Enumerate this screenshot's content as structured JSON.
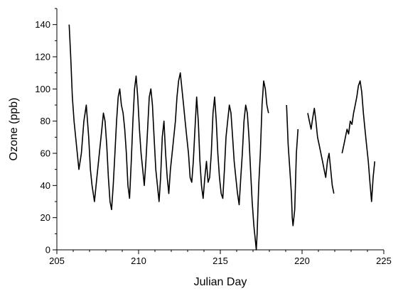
{
  "chart_data": {
    "type": "line",
    "xlabel": "Julian Day",
    "ylabel": "Ozone (ppb)",
    "xlim": [
      205,
      225
    ],
    "ylim": [
      0,
      150
    ],
    "xticks": [
      205,
      210,
      215,
      220,
      225
    ],
    "yticks": [
      0,
      20,
      40,
      60,
      80,
      100,
      120,
      140
    ],
    "grid": false,
    "series": [
      {
        "segments": [
          [
            [
              205.75,
              140
            ],
            [
              205.85,
              120
            ],
            [
              205.95,
              95
            ],
            [
              206.05,
              80
            ],
            [
              206.2,
              65
            ],
            [
              206.35,
              50
            ],
            [
              206.5,
              60
            ],
            [
              206.65,
              80
            ],
            [
              206.8,
              90
            ],
            [
              206.95,
              70
            ],
            [
              207.05,
              50
            ],
            [
              207.15,
              40
            ],
            [
              207.3,
              30
            ],
            [
              207.45,
              45
            ],
            [
              207.6,
              60
            ],
            [
              207.75,
              75
            ],
            [
              207.85,
              85
            ],
            [
              207.95,
              80
            ],
            [
              208.05,
              65
            ],
            [
              208.15,
              45
            ],
            [
              208.25,
              30
            ],
            [
              208.35,
              25
            ],
            [
              208.45,
              40
            ],
            [
              208.55,
              60
            ],
            [
              208.65,
              80
            ],
            [
              208.75,
              95
            ],
            [
              208.85,
              100
            ],
            [
              208.95,
              90
            ],
            [
              209.05,
              85
            ],
            [
              209.15,
              75
            ],
            [
              209.25,
              60
            ],
            [
              209.35,
              40
            ],
            [
              209.45,
              32
            ],
            [
              209.55,
              55
            ],
            [
              209.65,
              80
            ],
            [
              209.75,
              100
            ],
            [
              209.85,
              108
            ],
            [
              209.95,
              95
            ],
            [
              210.05,
              75
            ],
            [
              210.15,
              60
            ],
            [
              210.25,
              50
            ],
            [
              210.35,
              40
            ],
            [
              210.45,
              55
            ],
            [
              210.55,
              75
            ],
            [
              210.65,
              95
            ],
            [
              210.75,
              100
            ],
            [
              210.85,
              90
            ],
            [
              210.95,
              70
            ],
            [
              211.05,
              50
            ],
            [
              211.15,
              40
            ],
            [
              211.25,
              30
            ],
            [
              211.35,
              45
            ],
            [
              211.45,
              70
            ],
            [
              211.55,
              80
            ],
            [
              211.65,
              60
            ],
            [
              211.75,
              45
            ],
            [
              211.85,
              35
            ],
            [
              211.95,
              50
            ],
            [
              212.05,
              60
            ],
            [
              212.15,
              70
            ],
            [
              212.25,
              80
            ],
            [
              212.35,
              95
            ],
            [
              212.45,
              105
            ],
            [
              212.55,
              110
            ],
            [
              212.65,
              100
            ],
            [
              212.75,
              90
            ],
            [
              212.85,
              80
            ],
            [
              212.95,
              70
            ],
            [
              213.05,
              60
            ],
            [
              213.15,
              45
            ],
            [
              213.25,
              42
            ],
            [
              213.35,
              55
            ],
            [
              213.45,
              75
            ],
            [
              213.55,
              95
            ],
            [
              213.65,
              80
            ],
            [
              213.75,
              55
            ],
            [
              213.85,
              40
            ],
            [
              213.95,
              32
            ],
            [
              214.05,
              45
            ],
            [
              214.15,
              55
            ],
            [
              214.25,
              42
            ],
            [
              214.35,
              45
            ],
            [
              214.45,
              60
            ],
            [
              214.55,
              85
            ],
            [
              214.65,
              95
            ],
            [
              214.75,
              80
            ],
            [
              214.85,
              60
            ],
            [
              214.95,
              45
            ],
            [
              215.05,
              35
            ],
            [
              215.15,
              32
            ],
            [
              215.25,
              50
            ],
            [
              215.35,
              70
            ],
            [
              215.45,
              80
            ],
            [
              215.55,
              90
            ],
            [
              215.65,
              85
            ],
            [
              215.75,
              70
            ],
            [
              215.85,
              55
            ],
            [
              215.95,
              45
            ],
            [
              216.05,
              35
            ],
            [
              216.15,
              28
            ],
            [
              216.25,
              45
            ],
            [
              216.35,
              60
            ],
            [
              216.45,
              80
            ],
            [
              216.55,
              90
            ],
            [
              216.65,
              85
            ],
            [
              216.75,
              70
            ],
            [
              216.85,
              50
            ],
            [
              216.95,
              30
            ],
            [
              217.05,
              15
            ],
            [
              217.15,
              5
            ],
            [
              217.2,
              0
            ],
            [
              217.25,
              10
            ],
            [
              217.35,
              40
            ],
            [
              217.45,
              60
            ],
            [
              217.55,
              90
            ],
            [
              217.65,
              105
            ],
            [
              217.75,
              100
            ],
            [
              217.85,
              90
            ],
            [
              217.95,
              85
            ]
          ],
          [
            [
              219.05,
              90
            ],
            [
              219.15,
              65
            ],
            [
              219.25,
              50
            ],
            [
              219.35,
              35
            ],
            [
              219.4,
              20
            ],
            [
              219.45,
              15
            ],
            [
              219.55,
              25
            ],
            [
              219.65,
              60
            ],
            [
              219.75,
              75
            ]
          ],
          [
            [
              220.35,
              85
            ],
            [
              220.45,
              80
            ],
            [
              220.55,
              75
            ],
            [
              220.65,
              82
            ],
            [
              220.75,
              88
            ],
            [
              220.85,
              80
            ],
            [
              220.95,
              70
            ],
            [
              221.05,
              65
            ],
            [
              221.15,
              60
            ],
            [
              221.25,
              55
            ],
            [
              221.35,
              50
            ],
            [
              221.45,
              45
            ],
            [
              221.55,
              55
            ],
            [
              221.65,
              60
            ],
            [
              221.75,
              50
            ],
            [
              221.85,
              40
            ],
            [
              221.95,
              35
            ]
          ],
          [
            [
              222.45,
              60
            ],
            [
              222.55,
              65
            ],
            [
              222.65,
              70
            ],
            [
              222.75,
              75
            ],
            [
              222.85,
              72
            ],
            [
              222.95,
              80
            ],
            [
              223.05,
              78
            ],
            [
              223.15,
              85
            ],
            [
              223.25,
              90
            ],
            [
              223.35,
              95
            ],
            [
              223.45,
              102
            ],
            [
              223.55,
              105
            ],
            [
              223.65,
              98
            ],
            [
              223.75,
              85
            ],
            [
              223.85,
              75
            ],
            [
              223.95,
              65
            ],
            [
              224.05,
              55
            ],
            [
              224.15,
              42
            ],
            [
              224.25,
              30
            ],
            [
              224.35,
              45
            ],
            [
              224.45,
              55
            ]
          ]
        ]
      }
    ]
  }
}
